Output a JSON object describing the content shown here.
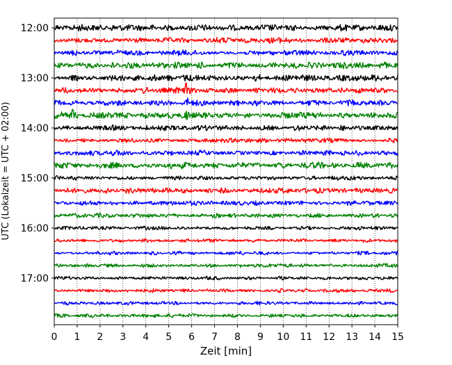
{
  "chart_data": {
    "type": "line",
    "title": "",
    "xlabel": "Zeit  [min]",
    "ylabel": "UTC (Lokalzeit = UTC + 02:00)",
    "xlim": [
      0,
      15
    ],
    "x_ticks": [
      0,
      1,
      2,
      3,
      4,
      5,
      6,
      7,
      8,
      9,
      10,
      11,
      12,
      13,
      14,
      15
    ],
    "x_tick_labels": [
      "0",
      "1",
      "2",
      "3",
      "4",
      "5",
      "6",
      "7",
      "8",
      "9",
      "10",
      "11",
      "12",
      "13",
      "14",
      "15"
    ],
    "grid": "vertical dotted lines at each minute",
    "y_tick_labels": [
      "12:00",
      "13:00",
      "14:00",
      "15:00",
      "16:00",
      "17:00"
    ],
    "y_tick_trace_index": [
      0,
      4,
      8,
      12,
      16,
      20
    ],
    "trace_start_times": [
      "12:00",
      "12:15",
      "12:30",
      "12:45",
      "13:00",
      "13:15",
      "13:30",
      "13:45",
      "14:00",
      "14:15",
      "14:30",
      "14:45",
      "15:00",
      "15:15",
      "15:30",
      "15:45",
      "16:00",
      "16:15",
      "16:30",
      "16:45",
      "17:00",
      "17:15",
      "17:30",
      "17:45"
    ],
    "color_cycle": [
      "#000000",
      "#ff0000",
      "#0000ff",
      "#008000"
    ],
    "amplitude_levels": [
      3.5,
      3.0,
      3.0,
      3.5,
      3.5,
      3.5,
      3.0,
      3.5,
      3.0,
      2.5,
      3.0,
      3.5,
      2.5,
      3.0,
      2.5,
      2.5,
      2.0,
      2.0,
      2.0,
      2.0,
      2.0,
      2.0,
      2.0,
      2.0
    ],
    "events": [
      {
        "trace": 5,
        "x_min": 5.75,
        "amplitude": 9
      },
      {
        "trace": 6,
        "x_min": 5.8,
        "amplitude": 5
      },
      {
        "trace": 7,
        "x_min": 0.8,
        "amplitude": 6
      },
      {
        "trace": 7,
        "x_min": 5.8,
        "amplitude": 6
      }
    ]
  }
}
